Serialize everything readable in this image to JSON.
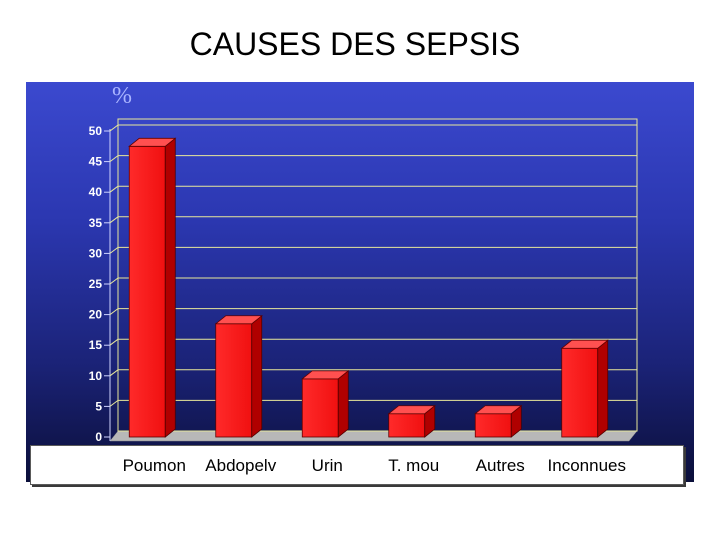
{
  "title": "CAUSES DES SEPSIS",
  "chart_data": {
    "type": "bar",
    "title": "CAUSES DES SEPSIS",
    "ylabel": "%",
    "xlabel": "",
    "categories": [
      "Poumon",
      "Abdopelv",
      "Urin",
      "T. mou",
      "Autres",
      "Inconnues"
    ],
    "values": [
      47.5,
      18.5,
      9.5,
      3.8,
      3.8,
      14.5
    ],
    "ylim": [
      0,
      50
    ],
    "yticks": [
      "0",
      "5",
      "10",
      "15",
      "20",
      "25",
      "30",
      "35",
      "40",
      "45",
      "50"
    ],
    "grid": true,
    "bar_color": "#ff1a1a",
    "background_color": "#2b37b0",
    "gridline_color": "#e8e89a"
  }
}
